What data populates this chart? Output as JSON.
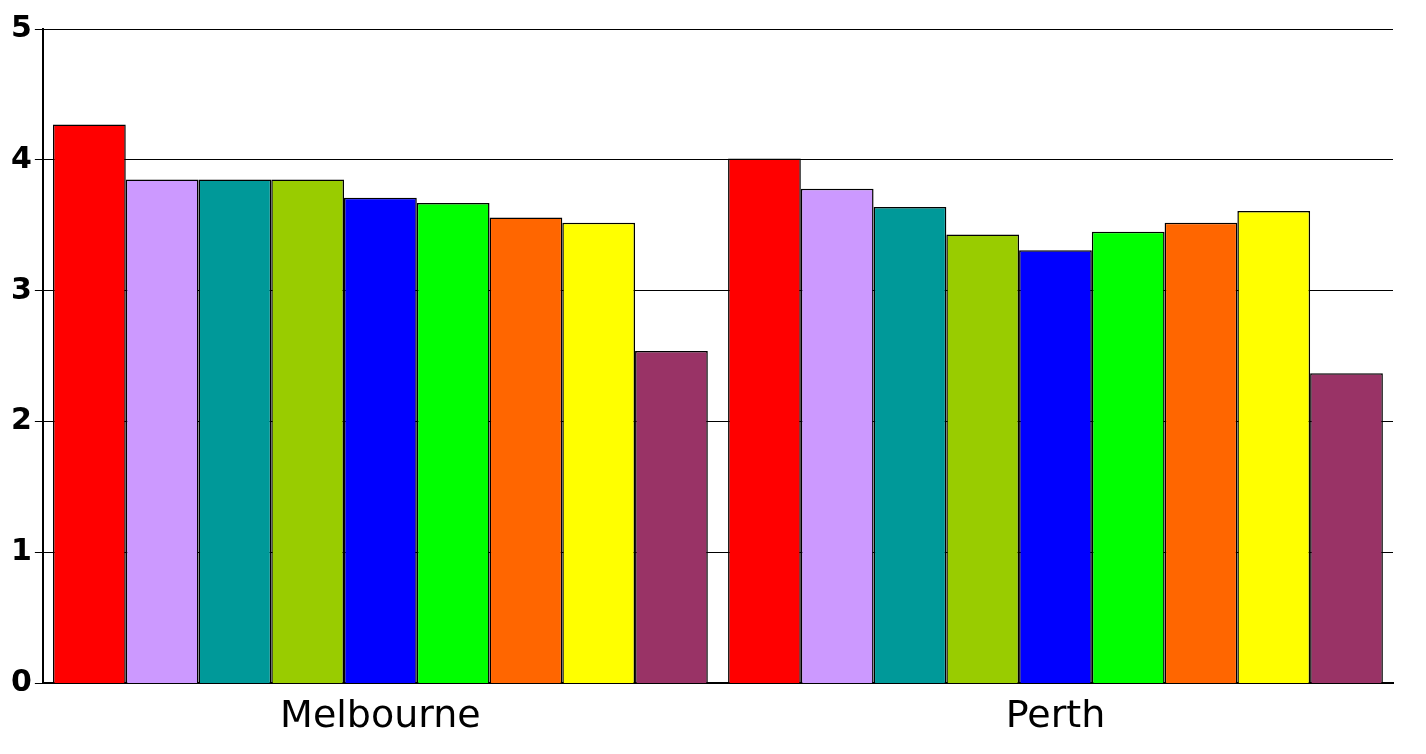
{
  "chart_data": {
    "type": "bar",
    "categories": [
      "Melbourne",
      "Perth"
    ],
    "series": [
      {
        "color": "#ff0000",
        "values": [
          4.27,
          4.01
        ]
      },
      {
        "color": "#cc99ff",
        "values": [
          3.85,
          3.78
        ]
      },
      {
        "color": "#009999",
        "values": [
          3.85,
          3.64
        ]
      },
      {
        "color": "#99cc00",
        "values": [
          3.85,
          3.43
        ]
      },
      {
        "color": "#0000ff",
        "values": [
          3.71,
          3.31
        ]
      },
      {
        "color": "#00ff00",
        "values": [
          3.67,
          3.45
        ]
      },
      {
        "color": "#ff6600",
        "values": [
          3.56,
          3.52
        ]
      },
      {
        "color": "#ffff00",
        "values": [
          3.52,
          3.61
        ]
      },
      {
        "color": "#993366",
        "values": [
          2.54,
          2.37
        ]
      }
    ],
    "ylim": [
      0,
      5
    ],
    "yticks": [
      0,
      1,
      2,
      3,
      4,
      5
    ],
    "grid": "y",
    "legend": false
  }
}
